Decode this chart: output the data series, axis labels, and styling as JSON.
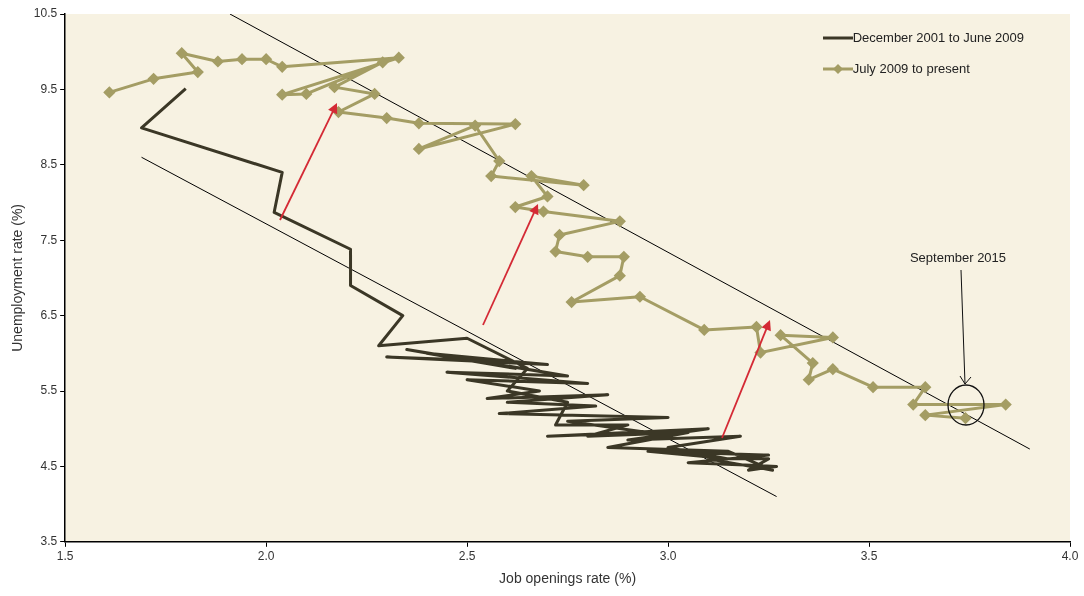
{
  "chart_data": {
    "type": "line",
    "xlabel": "Job openings rate (%)",
    "ylabel": "Unemployment rate (%)",
    "xlim": [
      1.5,
      4.0
    ],
    "xticks": [
      1.5,
      {
        "value": 2,
        "label": "2.0"
      },
      2.5,
      {
        "value": 3,
        "label": "3.0"
      },
      3.5,
      {
        "value": 4,
        "label": "4.0"
      }
    ],
    "ylim": [
      3.5,
      10.5
    ],
    "yticks": [
      3.5,
      4.5,
      5.5,
      6.5,
      7.5,
      8.5,
      9.5,
      10.5
    ],
    "grid": false,
    "legend": "top right",
    "line_style": "solid",
    "series": [
      {
        "name": "December 2001 to June 2009",
        "color": "#3b3726",
        "marker": "none",
        "x": [
          2.55,
          2.3,
          2.7,
          2.4,
          2.62,
          2.35,
          2.75,
          2.45,
          2.8,
          2.5,
          2.68,
          2.55,
          2.85,
          2.6,
          2.82,
          2.58,
          3.0,
          2.75,
          2.95,
          2.7,
          3.1,
          2.9,
          3.18,
          3.0,
          3.15,
          2.95,
          3.25,
          3.05,
          3.27,
          3.2,
          3.25,
          3.1,
          3.26,
          3.15,
          2.85,
          3.05,
          2.8,
          2.9,
          2.72,
          2.75,
          2.6,
          2.65,
          2.5,
          2.28,
          2.34,
          2.21,
          2.21,
          2.02,
          2.04,
          1.69,
          1.8
        ],
        "values": [
          5.9,
          5.95,
          5.85,
          6.0,
          5.8,
          6.05,
          5.7,
          5.75,
          5.6,
          5.65,
          5.5,
          5.4,
          5.45,
          5.35,
          5.3,
          5.2,
          5.15,
          5.1,
          4.95,
          4.9,
          5.0,
          4.85,
          4.9,
          4.75,
          4.6,
          4.7,
          4.65,
          4.55,
          4.5,
          4.45,
          4.6,
          4.6,
          4.45,
          4.7,
          4.75,
          4.95,
          4.9,
          5.05,
          5.05,
          5.35,
          5.5,
          5.8,
          6.2,
          6.1,
          6.5,
          6.9,
          7.38,
          7.87,
          8.4,
          8.99,
          9.51
        ]
      },
      {
        "name": "July 2009 to present",
        "color": "#a49d64",
        "marker": "diamond",
        "x": [
          1.61,
          1.72,
          1.83,
          1.79,
          1.88,
          1.94,
          2.0,
          2.04,
          2.33,
          2.04,
          2.1,
          2.29,
          2.17,
          2.27,
          2.18,
          2.3,
          2.38,
          2.62,
          2.38,
          2.52,
          2.58,
          2.56,
          2.79,
          2.66,
          2.7,
          2.62,
          2.69,
          2.88,
          2.73,
          2.72,
          2.8,
          2.89,
          2.88,
          2.76,
          2.93,
          3.09,
          3.22,
          3.23,
          3.41,
          3.28,
          3.36,
          3.35,
          3.41,
          3.51,
          3.64,
          3.61,
          3.84,
          3.64,
          3.74
        ],
        "values": [
          9.46,
          9.64,
          9.73,
          9.98,
          9.87,
          9.9,
          9.9,
          9.8,
          9.92,
          9.43,
          9.44,
          9.86,
          9.53,
          9.44,
          9.2,
          9.12,
          9.05,
          9.04,
          8.71,
          9.02,
          8.55,
          8.35,
          8.23,
          8.35,
          8.08,
          7.94,
          7.88,
          7.75,
          7.57,
          7.35,
          7.28,
          7.28,
          7.03,
          6.68,
          6.75,
          6.31,
          6.35,
          6.01,
          6.21,
          6.24,
          5.87,
          5.65,
          5.79,
          5.55,
          5.55,
          5.32,
          5.32,
          5.18,
          5.14
        ]
      },
      {
        "type": "line",
        "color": "#000000",
        "marker": "none",
        "x": [
          1.91,
          3.9
        ],
        "values": [
          10.5,
          4.73
        ]
      },
      {
        "type": "line",
        "color": "#000000",
        "marker": "none",
        "x": [
          1.69,
          3.27
        ],
        "values": [
          8.6,
          4.1
        ]
      }
    ],
    "annotations": [
      "September 2015"
    ]
  }
}
